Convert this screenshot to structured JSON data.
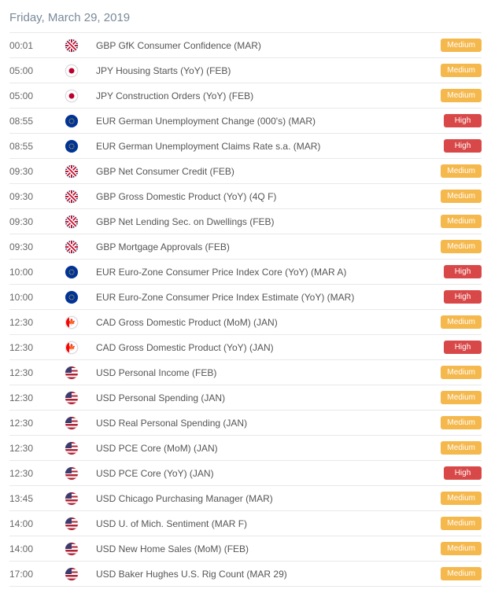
{
  "date_header": "Friday, March 29, 2019",
  "badge_labels": {
    "medium": "Medium",
    "high": "High"
  },
  "colors": {
    "medium_bg": "#f5b84d",
    "high_bg": "#d94848",
    "text": "#555",
    "header_text": "#7a8a9a",
    "border": "#e8e8e8"
  },
  "events": [
    {
      "time": "00:01",
      "flag": "uk",
      "name": "GBP GfK Consumer Confidence (MAR)",
      "impact": "medium"
    },
    {
      "time": "05:00",
      "flag": "jp",
      "name": "JPY Housing Starts (YoY) (FEB)",
      "impact": "medium"
    },
    {
      "time": "05:00",
      "flag": "jp",
      "name": "JPY Construction Orders (YoY) (FEB)",
      "impact": "medium"
    },
    {
      "time": "08:55",
      "flag": "eu",
      "name": "EUR German Unemployment Change (000's) (MAR)",
      "impact": "high"
    },
    {
      "time": "08:55",
      "flag": "eu",
      "name": "EUR German Unemployment Claims Rate s.a. (MAR)",
      "impact": "high"
    },
    {
      "time": "09:30",
      "flag": "uk",
      "name": "GBP Net Consumer Credit (FEB)",
      "impact": "medium"
    },
    {
      "time": "09:30",
      "flag": "uk",
      "name": "GBP Gross Domestic Product (YoY) (4Q F)",
      "impact": "medium"
    },
    {
      "time": "09:30",
      "flag": "uk",
      "name": "GBP Net Lending Sec. on Dwellings (FEB)",
      "impact": "medium"
    },
    {
      "time": "09:30",
      "flag": "uk",
      "name": "GBP Mortgage Approvals (FEB)",
      "impact": "medium"
    },
    {
      "time": "10:00",
      "flag": "eu",
      "name": "EUR Euro-Zone Consumer Price Index Core (YoY) (MAR A)",
      "impact": "high"
    },
    {
      "time": "10:00",
      "flag": "eu",
      "name": "EUR Euro-Zone Consumer Price Index Estimate (YoY) (MAR)",
      "impact": "high"
    },
    {
      "time": "12:30",
      "flag": "ca",
      "name": "CAD Gross Domestic Product (MoM) (JAN)",
      "impact": "medium"
    },
    {
      "time": "12:30",
      "flag": "ca",
      "name": "CAD Gross Domestic Product (YoY) (JAN)",
      "impact": "high"
    },
    {
      "time": "12:30",
      "flag": "us",
      "name": "USD Personal Income (FEB)",
      "impact": "medium"
    },
    {
      "time": "12:30",
      "flag": "us",
      "name": "USD Personal Spending (JAN)",
      "impact": "medium"
    },
    {
      "time": "12:30",
      "flag": "us",
      "name": "USD Real Personal Spending (JAN)",
      "impact": "medium"
    },
    {
      "time": "12:30",
      "flag": "us",
      "name": "USD PCE Core (MoM) (JAN)",
      "impact": "medium"
    },
    {
      "time": "12:30",
      "flag": "us",
      "name": "USD PCE Core (YoY) (JAN)",
      "impact": "high"
    },
    {
      "time": "13:45",
      "flag": "us",
      "name": "USD Chicago Purchasing Manager (MAR)",
      "impact": "medium"
    },
    {
      "time": "14:00",
      "flag": "us",
      "name": "USD U. of Mich. Sentiment (MAR F)",
      "impact": "medium"
    },
    {
      "time": "14:00",
      "flag": "us",
      "name": "USD New Home Sales (MoM) (FEB)",
      "impact": "medium"
    },
    {
      "time": "17:00",
      "flag": "us",
      "name": "USD Baker Hughes U.S. Rig Count (MAR 29)",
      "impact": "medium"
    }
  ]
}
